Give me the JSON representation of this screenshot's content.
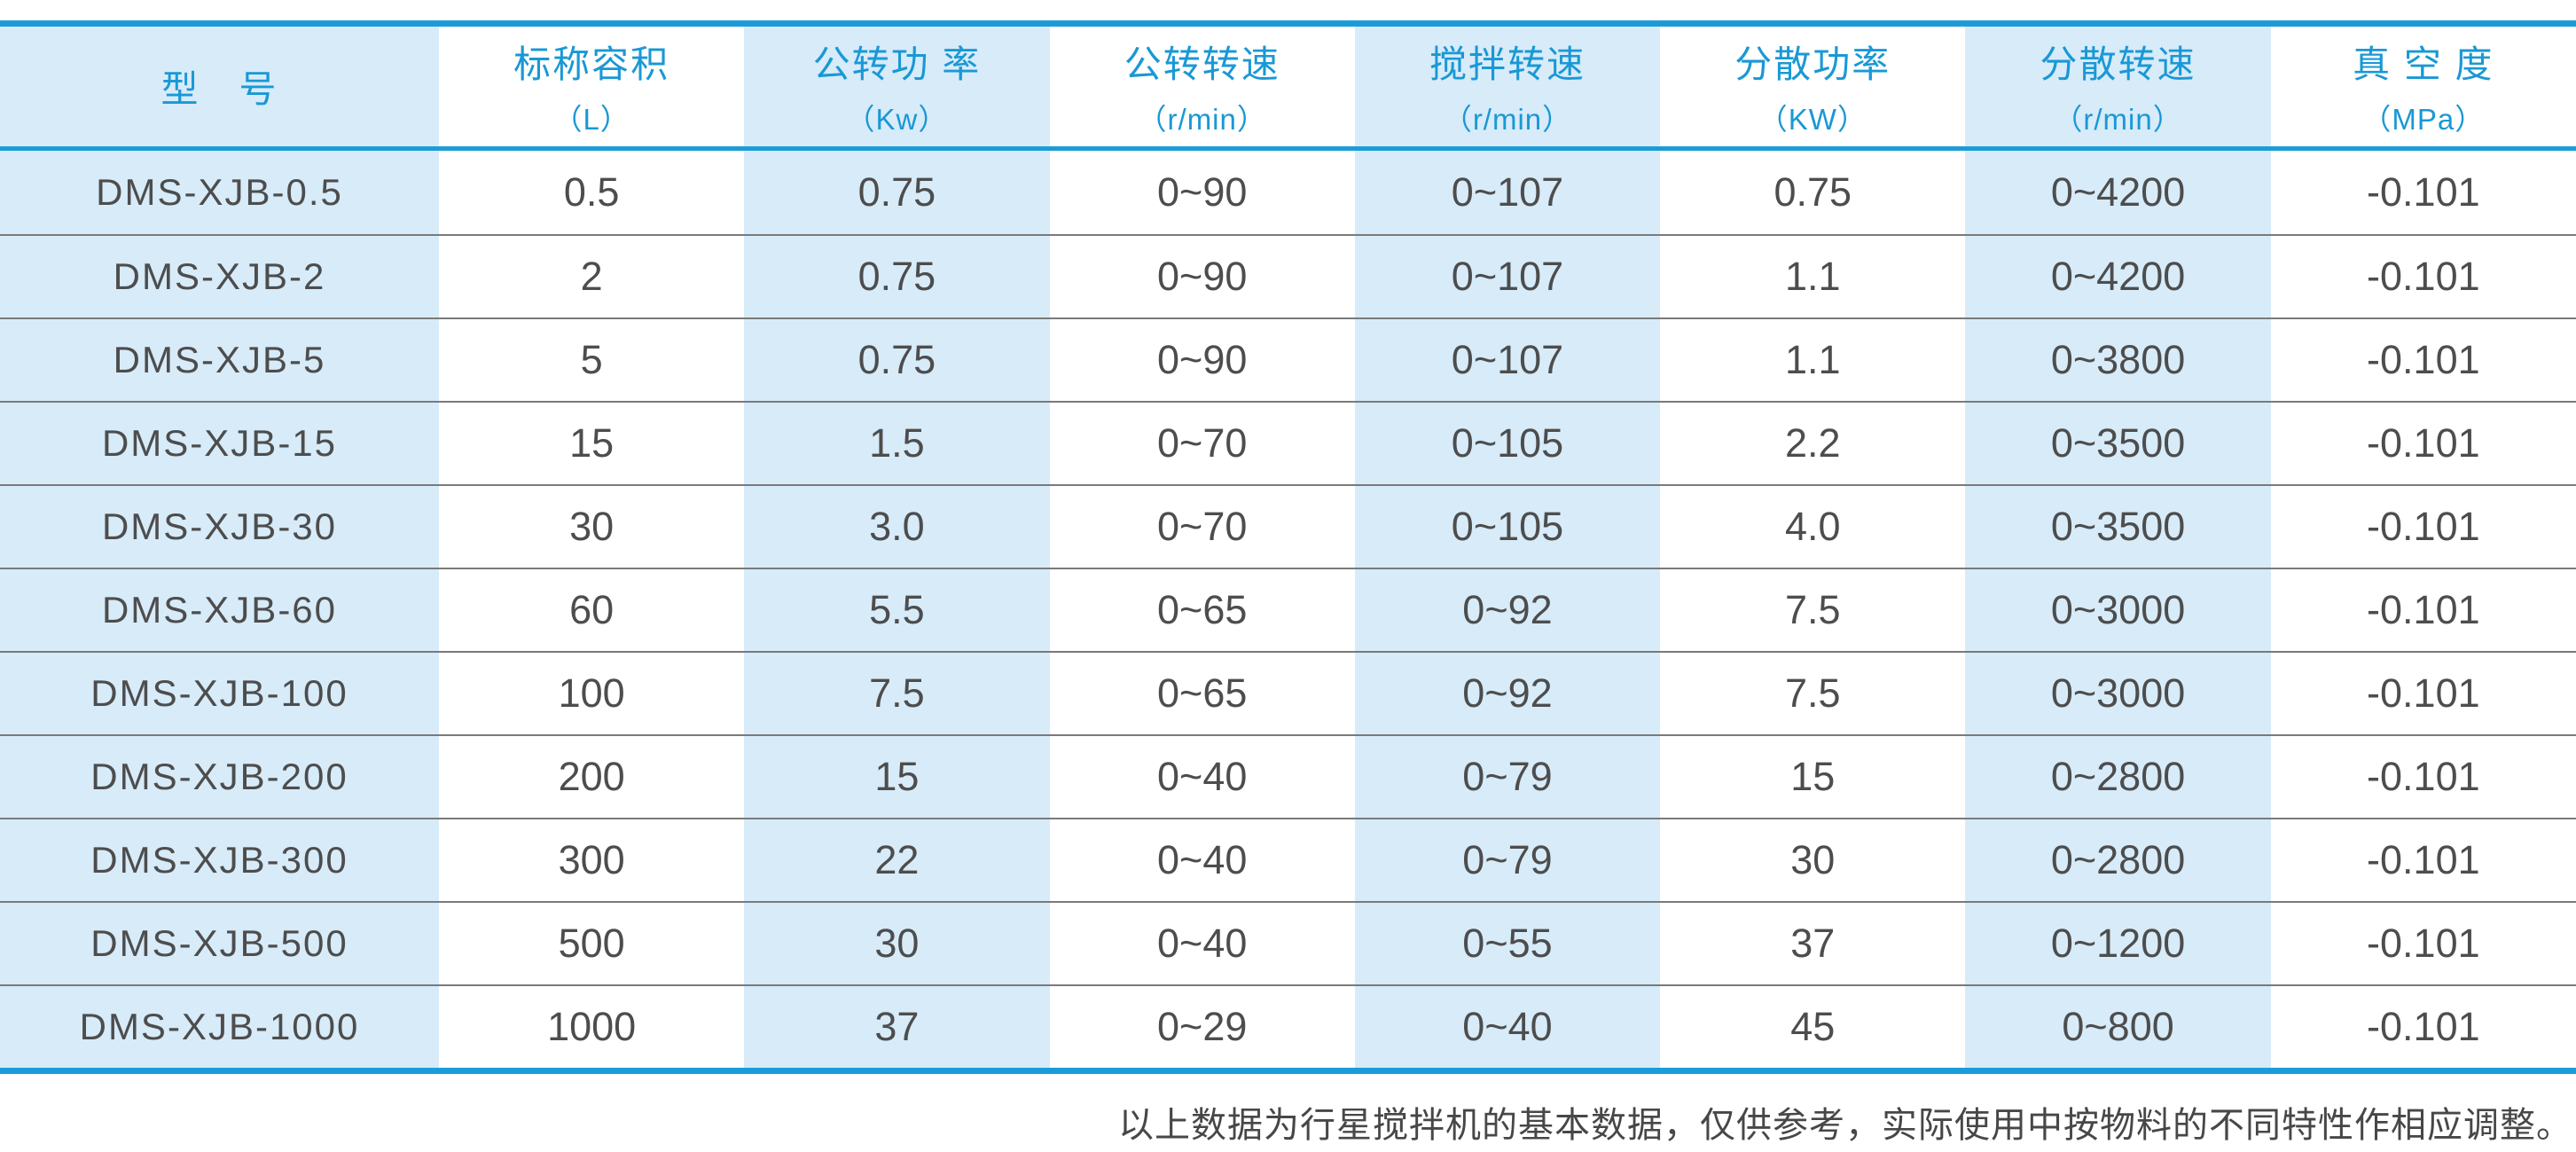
{
  "colors": {
    "accent_blue": "#1b9cd8",
    "header_text_blue": "#1a98d5",
    "stripe_light_blue": "#d7ebf9",
    "body_text_gray": "#4d4d4d",
    "separator_gray": "#7a7a7a"
  },
  "table": {
    "columns": [
      {
        "title": "型　号",
        "unit": ""
      },
      {
        "title": "标称容积",
        "unit": "（L）"
      },
      {
        "title": "公转功 率",
        "unit": "（Kw）"
      },
      {
        "title": "公转转速",
        "unit": "（r/min）"
      },
      {
        "title": "搅拌转速",
        "unit": "（r/min）"
      },
      {
        "title": "分散功率",
        "unit": "（KW）"
      },
      {
        "title": "分散转速",
        "unit": "（r/min）"
      },
      {
        "title": "真 空 度",
        "unit": "（MPa）"
      }
    ],
    "rows": [
      [
        "DMS-XJB-0.5",
        "0.5",
        "0.75",
        "0~90",
        "0~107",
        "0.75",
        "0~4200",
        "-0.101"
      ],
      [
        "DMS-XJB-2",
        "2",
        "0.75",
        "0~90",
        "0~107",
        "1.1",
        "0~4200",
        "-0.101"
      ],
      [
        "DMS-XJB-5",
        "5",
        "0.75",
        "0~90",
        "0~107",
        "1.1",
        "0~3800",
        "-0.101"
      ],
      [
        "DMS-XJB-15",
        "15",
        "1.5",
        "0~70",
        "0~105",
        "2.2",
        "0~3500",
        "-0.101"
      ],
      [
        "DMS-XJB-30",
        "30",
        "3.0",
        "0~70",
        "0~105",
        "4.0",
        "0~3500",
        "-0.101"
      ],
      [
        "DMS-XJB-60",
        "60",
        "5.5",
        "0~65",
        "0~92",
        "7.5",
        "0~3000",
        "-0.101"
      ],
      [
        "DMS-XJB-100",
        "100",
        "7.5",
        "0~65",
        "0~92",
        "7.5",
        "0~3000",
        "-0.101"
      ],
      [
        "DMS-XJB-200",
        "200",
        "15",
        "0~40",
        "0~79",
        "15",
        "0~2800",
        "-0.101"
      ],
      [
        "DMS-XJB-300",
        "300",
        "22",
        "0~40",
        "0~79",
        "30",
        "0~2800",
        "-0.101"
      ],
      [
        "DMS-XJB-500",
        "500",
        "30",
        "0~40",
        "0~55",
        "37",
        "0~1200",
        "-0.101"
      ],
      [
        "DMS-XJB-1000",
        "1000",
        "37",
        "0~29",
        "0~40",
        "45",
        "0~800",
        "-0.101"
      ]
    ]
  },
  "footer": {
    "note": "以上数据为行星搅拌机的基本数据，仅供参考，实际使用中按物料的不同特性作相应调整。"
  }
}
